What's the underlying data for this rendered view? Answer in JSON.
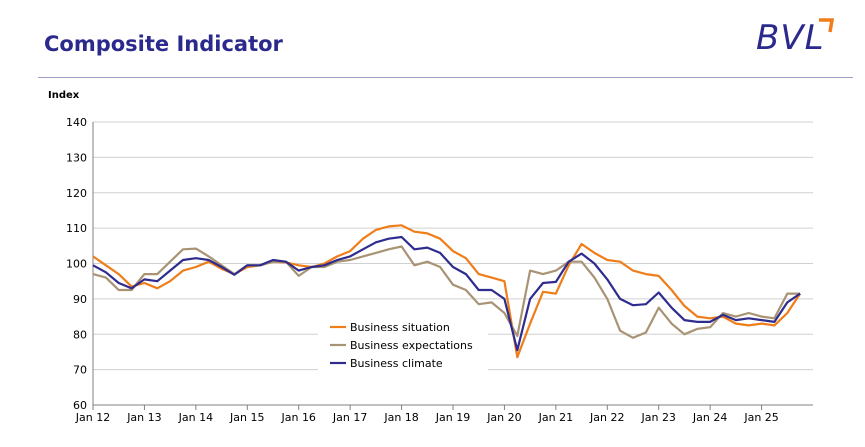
{
  "header": {
    "title": "Composite Indicator",
    "logo_text": "BVL",
    "logo_color": "#2b2a8c",
    "logo_accent": "#f07c1c"
  },
  "chart_data": {
    "type": "line",
    "title": "",
    "ylabel": "Index",
    "xlabel": "",
    "ylim": [
      60,
      140
    ],
    "yticks": [
      60,
      70,
      80,
      90,
      100,
      110,
      120,
      130,
      140
    ],
    "xlim": [
      2012,
      2026
    ],
    "xticks": [
      {
        "x": 2012,
        "label": "Jan 12"
      },
      {
        "x": 2013,
        "label": "Jan 13"
      },
      {
        "x": 2014,
        "label": "Jan 14"
      },
      {
        "x": 2015,
        "label": "Jan 15"
      },
      {
        "x": 2016,
        "label": "Jan 16"
      },
      {
        "x": 2017,
        "label": "Jan 17"
      },
      {
        "x": 2018,
        "label": "Jan 18"
      },
      {
        "x": 2019,
        "label": "Jan 19"
      },
      {
        "x": 2020,
        "label": "Jan 20"
      },
      {
        "x": 2021,
        "label": "Jan 21"
      },
      {
        "x": 2022,
        "label": "Jan 22"
      },
      {
        "x": 2023,
        "label": "Jan 23"
      },
      {
        "x": 2024,
        "label": "Jan 24"
      },
      {
        "x": 2025,
        "label": "Jan 25"
      }
    ],
    "grid": "horizontal",
    "legend_position": "bottom-center",
    "x": [
      2012.0,
      2012.25,
      2012.5,
      2012.75,
      2013.0,
      2013.25,
      2013.5,
      2013.75,
      2014.0,
      2014.25,
      2014.5,
      2014.75,
      2015.0,
      2015.25,
      2015.5,
      2015.75,
      2016.0,
      2016.25,
      2016.5,
      2016.75,
      2017.0,
      2017.25,
      2017.5,
      2017.75,
      2018.0,
      2018.25,
      2018.5,
      2018.75,
      2019.0,
      2019.25,
      2019.5,
      2019.75,
      2020.0,
      2020.25,
      2020.5,
      2020.75,
      2021.0,
      2021.25,
      2021.5,
      2021.75,
      2022.0,
      2022.25,
      2022.5,
      2022.75,
      2023.0,
      2023.25,
      2023.5,
      2023.75,
      2024.0,
      2024.25,
      2024.5,
      2024.75,
      2025.0,
      2025.25,
      2025.5,
      2025.75
    ],
    "series": [
      {
        "name": "Business situation",
        "color": "#ef7d1a",
        "values": [
          102,
          99.5,
          97,
          93.5,
          94.5,
          93,
          95,
          98,
          99,
          100.5,
          98.5,
          97,
          99,
          99.5,
          100.5,
          100.3,
          99.5,
          99,
          100,
          102,
          103.5,
          107,
          109.5,
          110.5,
          110.8,
          109,
          108.5,
          107,
          103.5,
          101.5,
          97,
          96,
          95,
          73.5,
          83,
          92,
          91.5,
          99.5,
          105.5,
          103,
          101,
          100.5,
          98,
          97,
          96.5,
          92.5,
          88,
          85,
          84.5,
          85,
          83,
          82.5,
          83,
          82.5,
          86,
          91.5
        ]
      },
      {
        "name": "Business expectations",
        "color": "#a89474",
        "values": [
          97,
          96,
          92.5,
          92.5,
          97,
          97,
          100.5,
          104,
          104.2,
          102,
          99.5,
          97,
          99.5,
          99.5,
          100.5,
          100.5,
          96.5,
          99,
          99,
          100.5,
          101,
          102,
          103,
          104,
          104.8,
          99.5,
          100.5,
          99,
          94,
          92.5,
          88.5,
          89,
          86,
          79.5,
          98,
          97,
          98,
          100.5,
          100.5,
          96,
          90,
          81,
          79,
          80.5,
          87.5,
          83,
          80,
          81.5,
          82,
          86,
          85,
          86,
          85,
          84.5,
          91.5,
          91.5
        ]
      },
      {
        "name": "Business climate",
        "color": "#2e2c8e",
        "values": [
          99.5,
          97.5,
          94.5,
          93,
          95.5,
          95,
          98,
          101,
          101.5,
          101,
          99,
          96.8,
          99.5,
          99.5,
          101,
          100.5,
          98,
          99,
          99.5,
          101,
          102,
          104,
          106,
          107,
          107.5,
          104,
          104.5,
          103,
          99,
          97,
          92.5,
          92.5,
          90,
          75.5,
          90,
          94.5,
          94.8,
          100.5,
          102.8,
          100,
          95.5,
          90,
          88.2,
          88.5,
          91.8,
          87.5,
          84,
          83.5,
          83.5,
          85.5,
          84,
          84.5,
          84,
          83.5,
          89,
          91.5
        ]
      }
    ]
  }
}
